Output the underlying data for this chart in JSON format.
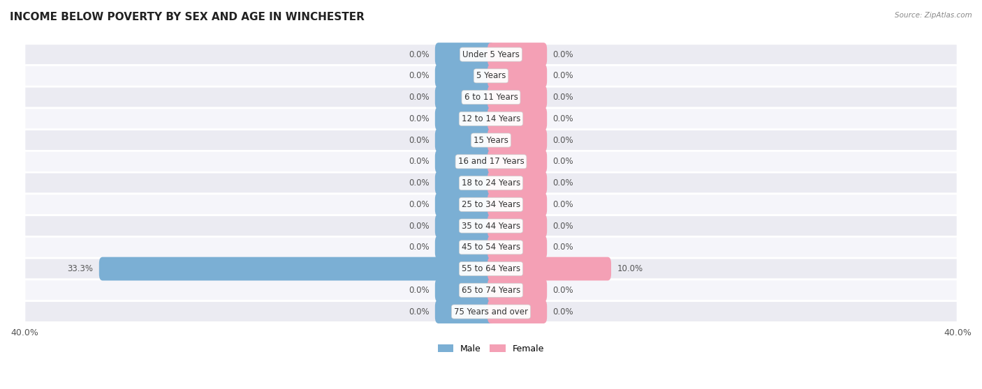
{
  "title": "INCOME BELOW POVERTY BY SEX AND AGE IN WINCHESTER",
  "source": "Source: ZipAtlas.com",
  "categories": [
    "Under 5 Years",
    "5 Years",
    "6 to 11 Years",
    "12 to 14 Years",
    "15 Years",
    "16 and 17 Years",
    "18 to 24 Years",
    "25 to 34 Years",
    "35 to 44 Years",
    "45 to 54 Years",
    "55 to 64 Years",
    "65 to 74 Years",
    "75 Years and over"
  ],
  "male_values": [
    0.0,
    0.0,
    0.0,
    0.0,
    0.0,
    0.0,
    0.0,
    0.0,
    0.0,
    0.0,
    33.3,
    0.0,
    0.0
  ],
  "female_values": [
    0.0,
    0.0,
    0.0,
    0.0,
    0.0,
    0.0,
    0.0,
    0.0,
    0.0,
    0.0,
    10.0,
    0.0,
    0.0
  ],
  "male_color": "#7bafd4",
  "female_color": "#f4a0b5",
  "male_label": "Male",
  "female_label": "Female",
  "xlim": 40.0,
  "title_fontsize": 11,
  "label_fontsize": 8.5,
  "tick_fontsize": 9,
  "bar_height": 0.5,
  "stub_size": 4.5,
  "row_colors": [
    "#ebebf2",
    "#f5f5fa"
  ]
}
